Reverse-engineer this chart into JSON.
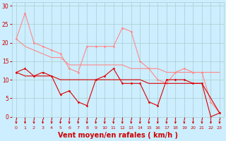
{
  "title": "",
  "xlabel": "Vent moyen/en rafales ( km/h )",
  "background_color": "#cceeff",
  "grid_color": "#aacccc",
  "x_ticks": [
    0,
    1,
    2,
    3,
    4,
    5,
    6,
    7,
    8,
    9,
    10,
    11,
    12,
    13,
    14,
    15,
    16,
    17,
    18,
    19,
    20,
    21,
    22,
    23
  ],
  "y_ticks": [
    0,
    5,
    10,
    15,
    20,
    25,
    30
  ],
  "ylim": [
    0,
    31
  ],
  "xlim": [
    -0.5,
    23.5
  ],
  "line_light_1_color": "#ff8888",
  "line_light_1_x": [
    0,
    1,
    2,
    3,
    4,
    5,
    6,
    7,
    8,
    9,
    10,
    11,
    12,
    13,
    14,
    15,
    16,
    17,
    18,
    19,
    20,
    21,
    22,
    23
  ],
  "line_light_1_y": [
    21,
    28,
    20,
    19,
    18,
    17,
    13,
    12,
    19,
    19,
    19,
    19,
    24,
    23,
    15,
    13,
    10,
    9,
    12,
    13,
    12,
    12,
    4,
    1
  ],
  "line_light_2_color": "#ff8888",
  "line_light_2_x": [
    0,
    1,
    2,
    3,
    4,
    5,
    6,
    7,
    8,
    9,
    10,
    11,
    12,
    13,
    14,
    15,
    16,
    17,
    18,
    19,
    20,
    21,
    22,
    23
  ],
  "line_light_2_y": [
    21,
    19,
    18,
    17,
    16,
    16,
    14,
    14,
    14,
    14,
    14,
    14,
    14,
    13,
    13,
    13,
    13,
    12,
    12,
    12,
    12,
    12,
    12,
    12
  ],
  "line_dark_1_color": "#dd0000",
  "line_dark_1_x": [
    0,
    1,
    2,
    3,
    4,
    5,
    6,
    7,
    8,
    9,
    10,
    11,
    12,
    13,
    14,
    15,
    16,
    17,
    18,
    19,
    20,
    21,
    22,
    23
  ],
  "line_dark_1_y": [
    12,
    13,
    11,
    12,
    11,
    6,
    7,
    4,
    3,
    10,
    11,
    13,
    9,
    9,
    9,
    4,
    3,
    10,
    10,
    10,
    9,
    9,
    0,
    1
  ],
  "line_dark_2_color": "#dd0000",
  "line_dark_2_x": [
    0,
    1,
    2,
    3,
    4,
    5,
    6,
    7,
    8,
    9,
    10,
    11,
    12,
    13,
    14,
    15,
    16,
    17,
    18,
    19,
    20,
    21,
    22,
    23
  ],
  "line_dark_2_y": [
    12,
    11,
    11,
    11,
    11,
    10,
    10,
    10,
    10,
    10,
    10,
    10,
    10,
    10,
    10,
    9,
    9,
    9,
    9,
    9,
    9,
    9,
    5,
    1
  ],
  "xlabel_color": "#cc0000",
  "xlabel_fontsize": 7,
  "tick_color": "#cc0000",
  "tick_fontsize_x": 4.5,
  "tick_fontsize_y": 5.5,
  "arrow_color": "#cc0000",
  "marker_size": 2,
  "linewidth": 0.8
}
